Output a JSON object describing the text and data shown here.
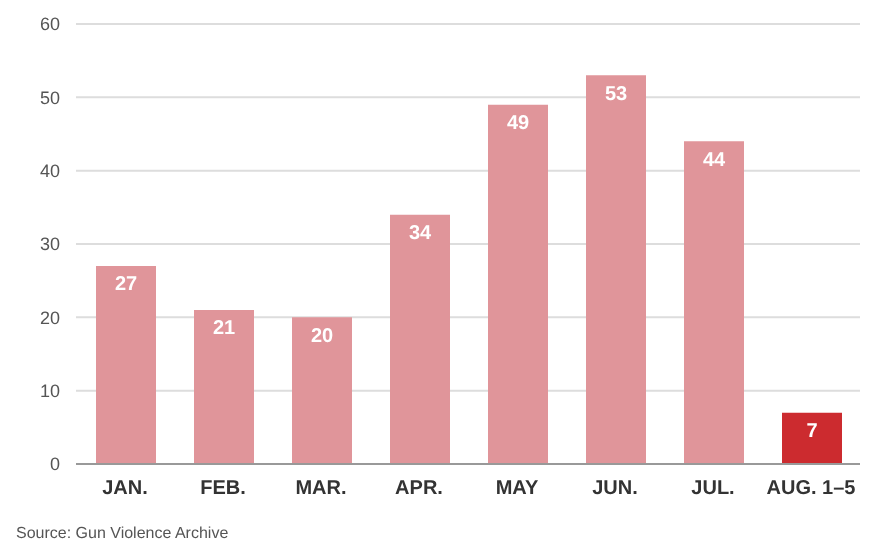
{
  "chart_data": {
    "type": "bar",
    "categories": [
      "JAN.",
      "FEB.",
      "MAR.",
      "APR.",
      "MAY",
      "JUN.",
      "JUL.",
      "AUG. 1–5"
    ],
    "values": [
      27,
      21,
      20,
      34,
      49,
      53,
      44,
      7
    ],
    "colors": [
      "#e0959a",
      "#e0959a",
      "#e0959a",
      "#e0959a",
      "#e0959a",
      "#e0959a",
      "#e0959a",
      "#cc2b2f"
    ],
    "ylim": [
      0,
      60
    ],
    "yticks": [
      0,
      10,
      20,
      30,
      40,
      50,
      60
    ],
    "grid": "y",
    "data_labels": true,
    "annotations": [
      "Source: Gun Violence Archive"
    ]
  }
}
